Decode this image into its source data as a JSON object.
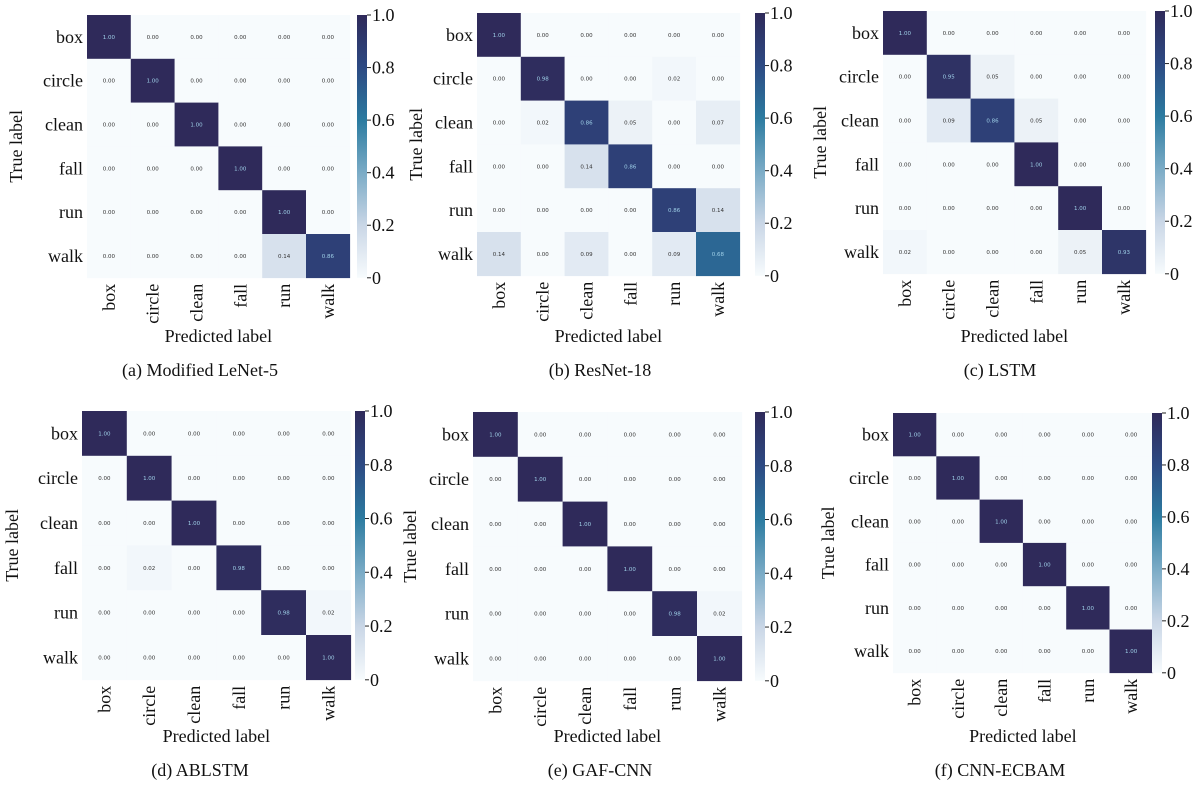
{
  "colorscale": [
    "#f7fbfd",
    "#c9d6e6",
    "#7aabc6",
    "#2c7ba0",
    "#2d4a83",
    "#2f2a5a"
  ],
  "chart_data": [
    {
      "type": "heatmap",
      "caption": "(a) Modified LeNet-5",
      "xlabel": "Predicted label",
      "ylabel": "True label",
      "categories": [
        "box",
        "circle",
        "clean",
        "fall",
        "run",
        "walk"
      ],
      "colorbar_ticks": [
        "0",
        "0.2",
        "0.4",
        "0.6",
        "0.8",
        "1.0"
      ],
      "vmin": 0,
      "vmax": 1,
      "values": [
        [
          1.0,
          0.0,
          0.0,
          0.0,
          0.0,
          0.0
        ],
        [
          0.0,
          1.0,
          0.0,
          0.0,
          0.0,
          0.0
        ],
        [
          0.0,
          0.0,
          1.0,
          0.0,
          0.0,
          0.0
        ],
        [
          0.0,
          0.0,
          0.0,
          1.0,
          0.0,
          0.0
        ],
        [
          0.0,
          0.0,
          0.0,
          0.0,
          1.0,
          0.0
        ],
        [
          0.0,
          0.0,
          0.0,
          0.0,
          0.14,
          0.86
        ]
      ]
    },
    {
      "type": "heatmap",
      "caption": "(b) ResNet-18",
      "xlabel": "Predicted label",
      "ylabel": "True label",
      "categories": [
        "box",
        "circle",
        "clean",
        "fall",
        "run",
        "walk"
      ],
      "colorbar_ticks": [
        "0",
        "0.2",
        "0.4",
        "0.6",
        "0.8",
        "1.0"
      ],
      "vmin": 0,
      "vmax": 1,
      "values": [
        [
          1.0,
          0.0,
          0.0,
          0.0,
          0.0,
          0.0
        ],
        [
          0.0,
          0.98,
          0.0,
          0.0,
          0.02,
          0.0
        ],
        [
          0.0,
          0.02,
          0.86,
          0.05,
          0.0,
          0.07
        ],
        [
          0.0,
          0.0,
          0.14,
          0.86,
          0.0,
          0.0
        ],
        [
          0.0,
          0.0,
          0.0,
          0.0,
          0.86,
          0.14
        ],
        [
          0.14,
          0.0,
          0.09,
          0.0,
          0.09,
          0.68
        ]
      ]
    },
    {
      "type": "heatmap",
      "caption": "(c) LSTM",
      "xlabel": "Predicted label",
      "ylabel": "True label",
      "categories": [
        "box",
        "circle",
        "clean",
        "fall",
        "run",
        "walk"
      ],
      "colorbar_ticks": [
        "0",
        "0.2",
        "0.4",
        "0.6",
        "0.8",
        "1.0"
      ],
      "vmin": 0,
      "vmax": 1,
      "values": [
        [
          1.0,
          0.0,
          0.0,
          0.0,
          0.0,
          0.0
        ],
        [
          0.0,
          0.95,
          0.05,
          0.0,
          0.0,
          0.0
        ],
        [
          0.0,
          0.09,
          0.86,
          0.05,
          0.0,
          0.0
        ],
        [
          0.0,
          0.0,
          0.0,
          1.0,
          0.0,
          0.0
        ],
        [
          0.0,
          0.0,
          0.0,
          0.0,
          1.0,
          0.0
        ],
        [
          0.02,
          0.0,
          0.0,
          0.0,
          0.05,
          0.93
        ]
      ]
    },
    {
      "type": "heatmap",
      "caption": "(d) ABLSTM",
      "xlabel": "Predicted label",
      "ylabel": "True label",
      "categories": [
        "box",
        "circle",
        "clean",
        "fall",
        "run",
        "walk"
      ],
      "colorbar_ticks": [
        "0",
        "0.2",
        "0.4",
        "0.6",
        "0.8",
        "1.0"
      ],
      "vmin": 0,
      "vmax": 1,
      "values": [
        [
          1.0,
          0.0,
          0.0,
          0.0,
          0.0,
          0.0
        ],
        [
          0.0,
          1.0,
          0.0,
          0.0,
          0.0,
          0.0
        ],
        [
          0.0,
          0.0,
          1.0,
          0.0,
          0.0,
          0.0
        ],
        [
          0.0,
          0.02,
          0.0,
          0.98,
          0.0,
          0.0
        ],
        [
          0.0,
          0.0,
          0.0,
          0.0,
          0.98,
          0.02
        ],
        [
          0.0,
          0.0,
          0.0,
          0.0,
          0.0,
          1.0
        ]
      ]
    },
    {
      "type": "heatmap",
      "caption": "(e) GAF-CNN",
      "xlabel": "Predicted label",
      "ylabel": "True label",
      "categories": [
        "box",
        "circle",
        "clean",
        "fall",
        "run",
        "walk"
      ],
      "colorbar_ticks": [
        "0",
        "0.2",
        "0.4",
        "0.6",
        "0.8",
        "1.0"
      ],
      "vmin": 0,
      "vmax": 1,
      "values": [
        [
          1.0,
          0.0,
          0.0,
          0.0,
          0.0,
          0.0
        ],
        [
          0.0,
          1.0,
          0.0,
          0.0,
          0.0,
          0.0
        ],
        [
          0.0,
          0.0,
          1.0,
          0.0,
          0.0,
          0.0
        ],
        [
          0.0,
          0.0,
          0.0,
          1.0,
          0.0,
          0.0
        ],
        [
          0.0,
          0.0,
          0.0,
          0.0,
          0.98,
          0.02
        ],
        [
          0.0,
          0.0,
          0.0,
          0.0,
          0.0,
          1.0
        ]
      ]
    },
    {
      "type": "heatmap",
      "caption": "(f) CNN-ECBAM",
      "xlabel": "Predicted label",
      "ylabel": "True label",
      "categories": [
        "box",
        "circle",
        "clean",
        "fall",
        "run",
        "walk"
      ],
      "colorbar_ticks": [
        "0",
        "0.2",
        "0.4",
        "0.6",
        "0.8",
        "1.0"
      ],
      "vmin": 0,
      "vmax": 1,
      "values": [
        [
          1.0,
          0.0,
          0.0,
          0.0,
          0.0,
          0.0
        ],
        [
          0.0,
          1.0,
          0.0,
          0.0,
          0.0,
          0.0
        ],
        [
          0.0,
          0.0,
          1.0,
          0.0,
          0.0,
          0.0
        ],
        [
          0.0,
          0.0,
          0.0,
          1.0,
          0.0,
          0.0
        ],
        [
          0.0,
          0.0,
          0.0,
          0.0,
          1.0,
          0.0
        ],
        [
          0.0,
          0.0,
          0.0,
          0.0,
          0.0,
          1.0
        ]
      ]
    }
  ]
}
